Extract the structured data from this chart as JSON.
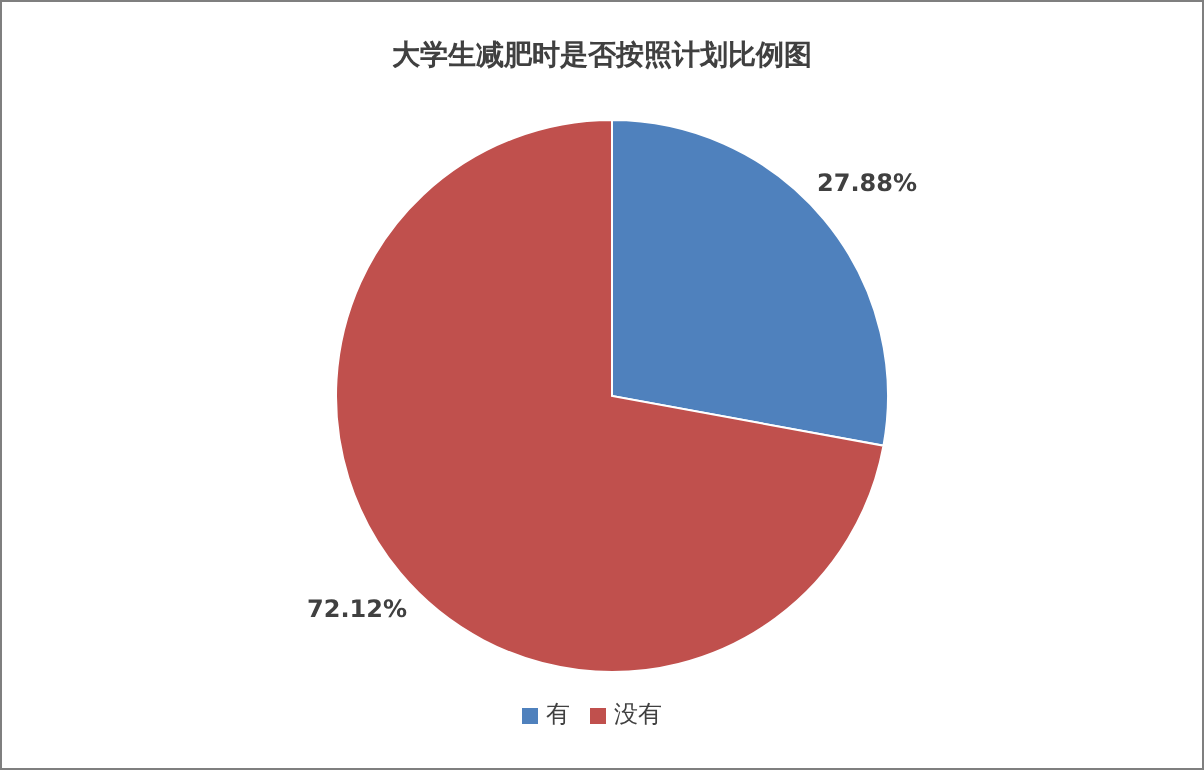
{
  "chart_data": {
    "type": "pie",
    "title": "大学生减肥时是否按照计划比例图",
    "categories": [
      "有",
      "没有"
    ],
    "values": [
      27.88,
      72.12
    ],
    "colors": [
      "#4f81bd",
      "#c0504d"
    ],
    "value_labels": [
      "27.88%",
      "72.12%"
    ],
    "legend": "bottom"
  }
}
